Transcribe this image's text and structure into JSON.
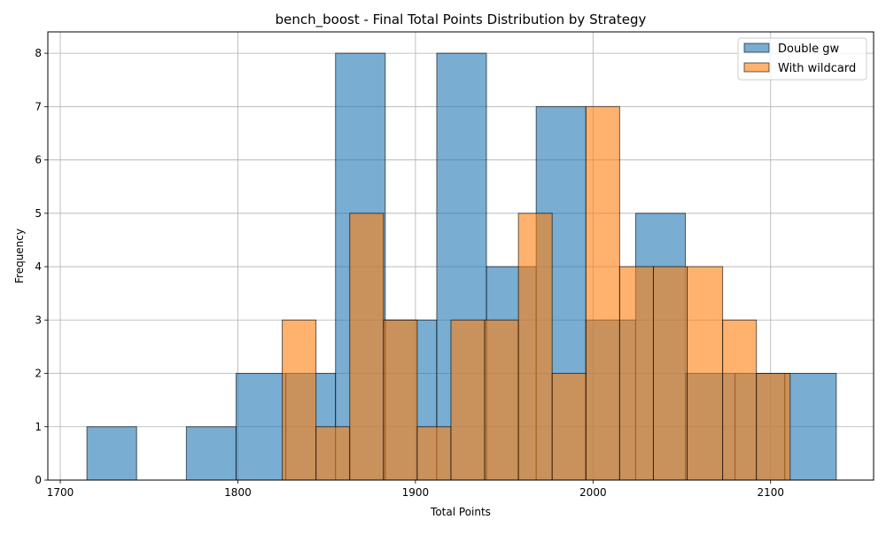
{
  "chart_data": {
    "type": "histogram",
    "title": "bench_boost - Final Total Points Distribution by Strategy",
    "xlabel": "Total Points",
    "ylabel": "Frequency",
    "xlim": [
      1693,
      2158
    ],
    "ylim": [
      0,
      8.4
    ],
    "xticks": [
      "1700",
      "1800",
      "1900",
      "2000",
      "2100"
    ],
    "yticks": [
      "0",
      "1",
      "2",
      "3",
      "4",
      "5",
      "6",
      "7",
      "8"
    ],
    "grid": true,
    "legend_position": "top-right",
    "series": [
      {
        "name": "Double gw",
        "color": "#1f77b4",
        "bins": [
          {
            "x0": 1715,
            "x1": 1743,
            "count": 1
          },
          {
            "x0": 1743,
            "x1": 1771,
            "count": 0
          },
          {
            "x0": 1771,
            "x1": 1799,
            "count": 1
          },
          {
            "x0": 1799,
            "x1": 1827,
            "count": 2
          },
          {
            "x0": 1827,
            "x1": 1855,
            "count": 2
          },
          {
            "x0": 1855,
            "x1": 1883,
            "count": 8
          },
          {
            "x0": 1883,
            "x1": 1912,
            "count": 3
          },
          {
            "x0": 1912,
            "x1": 1940,
            "count": 8
          },
          {
            "x0": 1940,
            "x1": 1968,
            "count": 4
          },
          {
            "x0": 1968,
            "x1": 1996,
            "count": 7
          },
          {
            "x0": 1996,
            "x1": 2024,
            "count": 3
          },
          {
            "x0": 2024,
            "x1": 2052,
            "count": 5
          },
          {
            "x0": 2052,
            "x1": 2080,
            "count": 2
          },
          {
            "x0": 2080,
            "x1": 2108,
            "count": 2
          },
          {
            "x0": 2108,
            "x1": 2137,
            "count": 2
          }
        ]
      },
      {
        "name": "With wildcard",
        "color": "#ff7f0e",
        "bins": [
          {
            "x0": 1825,
            "x1": 1844,
            "count": 3
          },
          {
            "x0": 1844,
            "x1": 1863,
            "count": 1
          },
          {
            "x0": 1863,
            "x1": 1882,
            "count": 5
          },
          {
            "x0": 1882,
            "x1": 1901,
            "count": 3
          },
          {
            "x0": 1901,
            "x1": 1920,
            "count": 1
          },
          {
            "x0": 1920,
            "x1": 1939,
            "count": 3
          },
          {
            "x0": 1939,
            "x1": 1958,
            "count": 3
          },
          {
            "x0": 1958,
            "x1": 1977,
            "count": 5
          },
          {
            "x0": 1977,
            "x1": 1996,
            "count": 2
          },
          {
            "x0": 1996,
            "x1": 2015,
            "count": 7
          },
          {
            "x0": 2015,
            "x1": 2034,
            "count": 4
          },
          {
            "x0": 2034,
            "x1": 2053,
            "count": 4
          },
          {
            "x0": 2053,
            "x1": 2073,
            "count": 4
          },
          {
            "x0": 2073,
            "x1": 2092,
            "count": 3
          },
          {
            "x0": 2092,
            "x1": 2111,
            "count": 2
          }
        ]
      }
    ]
  }
}
